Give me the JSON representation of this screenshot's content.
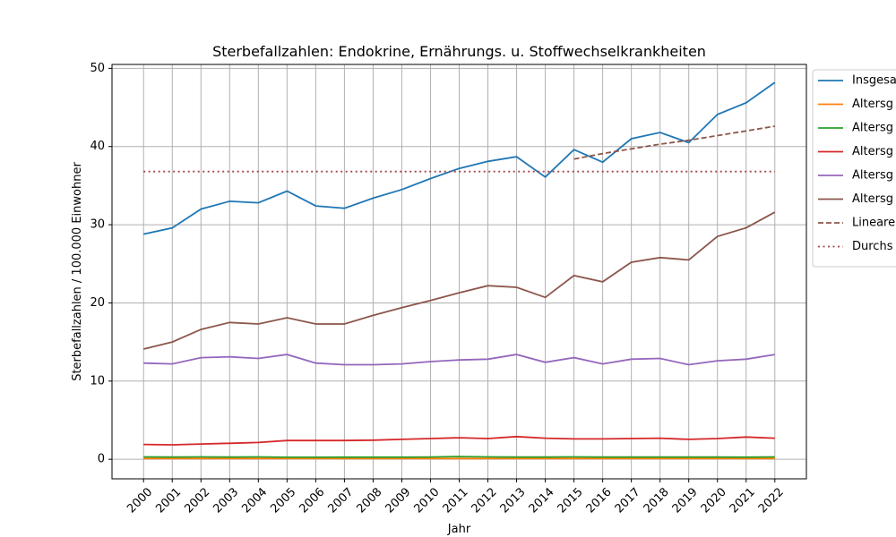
{
  "chart_data": {
    "type": "line",
    "title": "Sterbefallzahlen: Endokrine, Ernährungs. u. Stoffwechselkrankheiten",
    "xlabel": "Jahr",
    "ylabel": "Sterbefallzahlen / 100.000 Einwohner",
    "ylim": [
      -2.5,
      50.5
    ],
    "yticks": [
      0,
      10,
      20,
      30,
      40,
      50
    ],
    "grid": true,
    "legend_position": "right, outside plot (clipped)",
    "x": [
      2000,
      2001,
      2002,
      2003,
      2004,
      2005,
      2006,
      2007,
      2008,
      2009,
      2010,
      2011,
      2012,
      2013,
      2014,
      2015,
      2016,
      2017,
      2018,
      2019,
      2020,
      2021,
      2022
    ],
    "series": [
      {
        "name": "Insgesa",
        "color": "#1f77b4",
        "style": "solid",
        "values": [
          28.8,
          29.6,
          32.0,
          33.0,
          32.8,
          34.3,
          32.4,
          32.1,
          33.4,
          34.5,
          35.9,
          37.2,
          38.1,
          38.7,
          36.1,
          39.6,
          38.0,
          41.0,
          41.8,
          40.5,
          44.1,
          45.6,
          48.2
        ]
      },
      {
        "name": "Altersg",
        "color": "#ff7f0e",
        "style": "solid",
        "values": [
          0.1,
          0.1,
          0.1,
          0.1,
          0.1,
          0.1,
          0.1,
          0.1,
          0.1,
          0.1,
          0.1,
          0.1,
          0.1,
          0.1,
          0.1,
          0.1,
          0.1,
          0.1,
          0.1,
          0.1,
          0.1,
          0.1,
          0.1
        ]
      },
      {
        "name": "Altersg",
        "color": "#2ca02c",
        "style": "solid",
        "values": [
          0.3,
          0.28,
          0.3,
          0.28,
          0.3,
          0.26,
          0.26,
          0.27,
          0.27,
          0.27,
          0.29,
          0.35,
          0.3,
          0.28,
          0.28,
          0.3,
          0.28,
          0.28,
          0.28,
          0.28,
          0.28,
          0.27,
          0.3
        ]
      },
      {
        "name": "Altersg",
        "color": "#d62728",
        "style": "solid",
        "values": [
          1.9,
          1.85,
          1.95,
          2.05,
          2.15,
          2.4,
          2.4,
          2.4,
          2.45,
          2.55,
          2.65,
          2.75,
          2.65,
          2.9,
          2.7,
          2.6,
          2.6,
          2.65,
          2.7,
          2.55,
          2.65,
          2.85,
          2.7
        ]
      },
      {
        "name": "Altersg",
        "color": "#9467bd",
        "style": "solid",
        "values": [
          12.3,
          12.2,
          13.0,
          13.1,
          12.9,
          13.4,
          12.3,
          12.1,
          12.1,
          12.2,
          12.5,
          12.7,
          12.8,
          13.4,
          12.4,
          13.0,
          12.2,
          12.8,
          12.9,
          12.1,
          12.6,
          12.8,
          13.4
        ]
      },
      {
        "name": "Altersg",
        "color": "#8c564b",
        "style": "solid",
        "values": [
          14.1,
          15.0,
          16.6,
          17.5,
          17.3,
          18.1,
          17.3,
          17.3,
          18.4,
          19.4,
          20.3,
          21.3,
          22.2,
          22.0,
          20.7,
          23.5,
          22.7,
          25.2,
          25.8,
          25.5,
          28.5,
          29.6,
          31.6
        ]
      },
      {
        "name": "Lineare",
        "color": "#8c564b",
        "style": "dashed",
        "x": [
          2015,
          2016,
          2017,
          2018,
          2019,
          2020,
          2021,
          2022
        ],
        "values": [
          38.4,
          39.1,
          39.7,
          40.3,
          40.8,
          41.4,
          42.0,
          42.6
        ]
      },
      {
        "name": "Durchs",
        "color": "#a2484a",
        "style": "dotted",
        "x": [
          2000,
          2022
        ],
        "values": [
          36.8,
          36.8
        ]
      }
    ]
  }
}
